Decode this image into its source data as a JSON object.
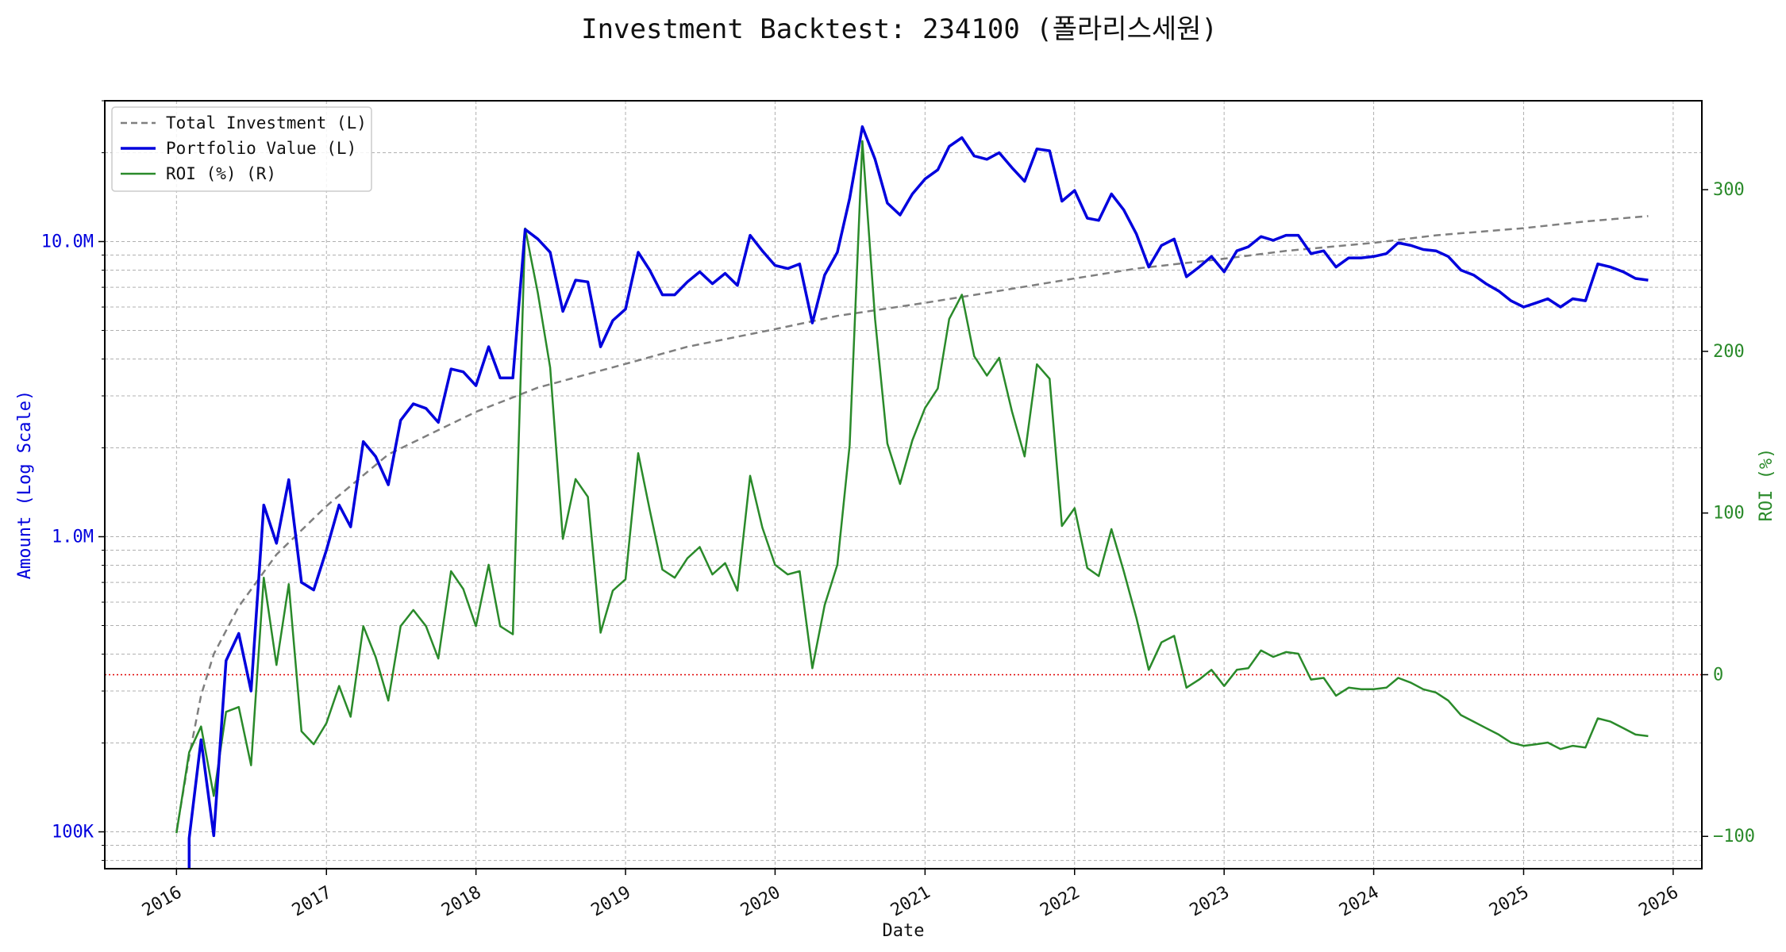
{
  "chart_data": {
    "type": "line",
    "title": "Investment Backtest: 234100 (폴라리스세원)",
    "xlabel": "Date",
    "ylabel_left": "Amount (Log Scale)",
    "ylabel_right": "ROI (%)",
    "x_ticks": [
      "2016",
      "2017",
      "2018",
      "2019",
      "2020",
      "2021",
      "2022",
      "2023",
      "2024",
      "2025",
      "2026"
    ],
    "y_left_ticks": [
      {
        "value": 100000,
        "label": "100K"
      },
      {
        "value": 1000000,
        "label": "1.0M"
      },
      {
        "value": 10000000,
        "label": "10.0M"
      }
    ],
    "y_right_ticks": [
      -100,
      0,
      100,
      200,
      300
    ],
    "y_left_range": [
      75000,
      30000000
    ],
    "y_left_scale": "log",
    "y_right_range": [
      -120,
      355
    ],
    "x_range": [
      "2015-07-10",
      "2026-03-12"
    ],
    "grid": true,
    "legend_position": "top-left",
    "zero_line_color": "#e00000",
    "series": [
      {
        "name": "Total Investment (L)",
        "axis": "left",
        "color": "#7f7f7f",
        "style": "dashed",
        "x": [
          "2016-01-01",
          "2016-02-01",
          "2016-03-01",
          "2016-04-01",
          "2016-06-01",
          "2016-09-01",
          "2017-01-01",
          "2017-06-01",
          "2018-01-01",
          "2018-06-01",
          "2019-01-01",
          "2019-06-01",
          "2020-01-01",
          "2020-06-01",
          "2021-01-01",
          "2021-06-01",
          "2022-01-01",
          "2022-06-01",
          "2023-01-01",
          "2023-06-01",
          "2024-01-01",
          "2024-06-01",
          "2025-01-01",
          "2025-06-01",
          "2025-11-01"
        ],
        "y": [
          100000,
          180000,
          290000,
          400000,
          580000,
          870000,
          1270000,
          1900000,
          2650000,
          3200000,
          3850000,
          4400000,
          5050000,
          5600000,
          6200000,
          6700000,
          7500000,
          8100000,
          8750000,
          9300000,
          9900000,
          10500000,
          11100000,
          11700000,
          12200000
        ]
      },
      {
        "name": "Portfolio Value (L)",
        "axis": "left",
        "color": "#0000dd",
        "style": "solid",
        "x": [
          "2016-02-01",
          "2016-03-01",
          "2016-04-01",
          "2016-05-01",
          "2016-06-01",
          "2016-07-01",
          "2016-08-01",
          "2016-09-01",
          "2016-10-01",
          "2016-11-01",
          "2016-12-01",
          "2017-01-01",
          "2017-02-01",
          "2017-03-01",
          "2017-04-01",
          "2017-05-01",
          "2017-06-01",
          "2017-07-01",
          "2017-08-01",
          "2017-09-01",
          "2017-10-01",
          "2017-11-01",
          "2017-12-01",
          "2018-01-01",
          "2018-02-01",
          "2018-03-01",
          "2018-04-01",
          "2018-05-01",
          "2018-06-01",
          "2018-07-01",
          "2018-08-01",
          "2018-09-01",
          "2018-10-01",
          "2018-11-01",
          "2018-12-01",
          "2019-01-01",
          "2019-02-01",
          "2019-03-01",
          "2019-04-01",
          "2019-05-01",
          "2019-06-01",
          "2019-07-01",
          "2019-08-01",
          "2019-09-01",
          "2019-10-01",
          "2019-11-01",
          "2019-12-01",
          "2020-01-01",
          "2020-02-01",
          "2020-03-01",
          "2020-04-01",
          "2020-05-01",
          "2020-06-01",
          "2020-07-01",
          "2020-08-01",
          "2020-09-01",
          "2020-10-01",
          "2020-11-01",
          "2020-12-01",
          "2021-01-01",
          "2021-02-01",
          "2021-03-01",
          "2021-04-01",
          "2021-05-01",
          "2021-06-01",
          "2021-07-01",
          "2021-08-01",
          "2021-09-01",
          "2021-10-01",
          "2021-11-01",
          "2021-12-01",
          "2022-01-01",
          "2022-02-01",
          "2022-03-01",
          "2022-04-01",
          "2022-05-01",
          "2022-06-01",
          "2022-07-01",
          "2022-08-01",
          "2022-09-01",
          "2022-10-01",
          "2022-11-01",
          "2022-12-01",
          "2023-01-01",
          "2023-02-01",
          "2023-03-01",
          "2023-04-01",
          "2023-05-01",
          "2023-06-01",
          "2023-07-01",
          "2023-08-01",
          "2023-09-01",
          "2023-10-01",
          "2023-11-01",
          "2023-12-01",
          "2024-01-01",
          "2024-02-01",
          "2024-03-01",
          "2024-04-01",
          "2024-05-01",
          "2024-06-01",
          "2024-07-01",
          "2024-08-01",
          "2024-09-01",
          "2024-10-01",
          "2024-11-01",
          "2024-12-01",
          "2025-01-01",
          "2025-02-01",
          "2025-03-01",
          "2025-04-01",
          "2025-05-01",
          "2025-06-01",
          "2025-07-01",
          "2025-08-01",
          "2025-09-01",
          "2025-10-01",
          "2025-11-01"
        ],
        "y": [
          95000,
          205000,
          97000,
          380000,
          470000,
          300000,
          1280000,
          950000,
          1560000,
          700000,
          660000,
          900000,
          1280000,
          1080000,
          2100000,
          1870000,
          1500000,
          2480000,
          2820000,
          2720000,
          2440000,
          3700000,
          3620000,
          3250000,
          4400000,
          3450000,
          3450000,
          11000000,
          10200000,
          9200000,
          5800000,
          7400000,
          7300000,
          4400000,
          5400000,
          5900000,
          9200000,
          8000000,
          6600000,
          6600000,
          7300000,
          7900000,
          7200000,
          7800000,
          7100000,
          10500000,
          9300000,
          8300000,
          8100000,
          8400000,
          5300000,
          7700000,
          9200000,
          14000000,
          24500000,
          19000000,
          13500000,
          12300000,
          14500000,
          16300000,
          17500000,
          21000000,
          22500000,
          19500000,
          19000000,
          20000000,
          17800000,
          16000000,
          20600000,
          20300000,
          13700000,
          14900000,
          12000000,
          11800000,
          14500000,
          12800000,
          10600000,
          8200000,
          9700000,
          10200000,
          7600000,
          8200000,
          8900000,
          7900000,
          9300000,
          9600000,
          10400000,
          10100000,
          10500000,
          10500000,
          9100000,
          9300000,
          8200000,
          8800000,
          8800000,
          8900000,
          9100000,
          9900000,
          9700000,
          9400000,
          9300000,
          8900000,
          8000000,
          7700000,
          7200000,
          6800000,
          6300000,
          6000000,
          6200000,
          6400000,
          6000000,
          6400000,
          6300000,
          8400000,
          8200000,
          7900000,
          7500000,
          7400000
        ],
        "lead_in": {
          "x": "2016-02-01",
          "y": 50000
        }
      },
      {
        "name": "ROI (%) (R)",
        "axis": "right",
        "color": "#2a8a2a",
        "style": "solid",
        "x": [
          "2016-01-01",
          "2016-02-01",
          "2016-03-01",
          "2016-04-01",
          "2016-05-01",
          "2016-06-01",
          "2016-07-01",
          "2016-08-01",
          "2016-09-01",
          "2016-10-01",
          "2016-11-01",
          "2016-12-01",
          "2017-01-01",
          "2017-02-01",
          "2017-03-01",
          "2017-04-01",
          "2017-05-01",
          "2017-06-01",
          "2017-07-01",
          "2017-08-01",
          "2017-09-01",
          "2017-10-01",
          "2017-11-01",
          "2017-12-01",
          "2018-01-01",
          "2018-02-01",
          "2018-03-01",
          "2018-04-01",
          "2018-05-01",
          "2018-06-01",
          "2018-07-01",
          "2018-08-01",
          "2018-09-01",
          "2018-10-01",
          "2018-11-01",
          "2018-12-01",
          "2019-01-01",
          "2019-02-01",
          "2019-03-01",
          "2019-04-01",
          "2019-05-01",
          "2019-06-01",
          "2019-07-01",
          "2019-08-01",
          "2019-09-01",
          "2019-10-01",
          "2019-11-01",
          "2019-12-01",
          "2020-01-01",
          "2020-02-01",
          "2020-03-01",
          "2020-04-01",
          "2020-05-01",
          "2020-06-01",
          "2020-07-01",
          "2020-08-01",
          "2020-09-01",
          "2020-10-01",
          "2020-11-01",
          "2020-12-01",
          "2021-01-01",
          "2021-02-01",
          "2021-03-01",
          "2021-04-01",
          "2021-05-01",
          "2021-06-01",
          "2021-07-01",
          "2021-08-01",
          "2021-09-01",
          "2021-10-01",
          "2021-11-01",
          "2021-12-01",
          "2022-01-01",
          "2022-02-01",
          "2022-03-01",
          "2022-04-01",
          "2022-05-01",
          "2022-06-01",
          "2022-07-01",
          "2022-08-01",
          "2022-09-01",
          "2022-10-01",
          "2022-11-01",
          "2022-12-01",
          "2023-01-01",
          "2023-02-01",
          "2023-03-01",
          "2023-04-01",
          "2023-05-01",
          "2023-06-01",
          "2023-07-01",
          "2023-08-01",
          "2023-09-01",
          "2023-10-01",
          "2023-11-01",
          "2023-12-01",
          "2024-01-01",
          "2024-02-01",
          "2024-03-01",
          "2024-04-01",
          "2024-05-01",
          "2024-06-01",
          "2024-07-01",
          "2024-08-01",
          "2024-09-01",
          "2024-10-01",
          "2024-11-01",
          "2024-12-01",
          "2025-01-01",
          "2025-02-01",
          "2025-03-01",
          "2025-04-01",
          "2025-05-01",
          "2025-06-01",
          "2025-07-01",
          "2025-08-01",
          "2025-09-01",
          "2025-10-01",
          "2025-11-01"
        ],
        "y": [
          -98,
          -48,
          -32,
          -75,
          -23,
          -20,
          -56,
          60,
          6,
          56,
          -35,
          -43,
          -30,
          -7,
          -26,
          30,
          11,
          -16,
          30,
          40,
          30,
          10,
          64,
          53,
          30,
          68,
          30,
          25,
          276,
          236,
          190,
          84,
          121,
          110,
          26,
          52,
          59,
          137,
          102,
          65,
          60,
          72,
          79,
          62,
          69,
          52,
          123,
          91,
          68,
          62,
          64,
          4,
          43,
          68,
          142,
          330,
          220,
          143,
          118,
          145,
          165,
          177,
          220,
          235,
          197,
          185,
          196,
          163,
          135,
          192,
          183,
          92,
          103,
          66,
          61,
          90,
          64,
          35,
          3,
          20,
          24,
          -8,
          -3,
          3,
          -7,
          3,
          4,
          15,
          11,
          14,
          13,
          -3,
          -2,
          -13,
          -8,
          -9,
          -9,
          -8,
          -2,
          -5,
          -9,
          -11,
          -16,
          -25,
          -29,
          -33,
          -37,
          -42,
          -44,
          -43,
          -42,
          -46,
          -44,
          -45,
          -27,
          -29,
          -33,
          -37,
          -38
        ]
      }
    ]
  }
}
